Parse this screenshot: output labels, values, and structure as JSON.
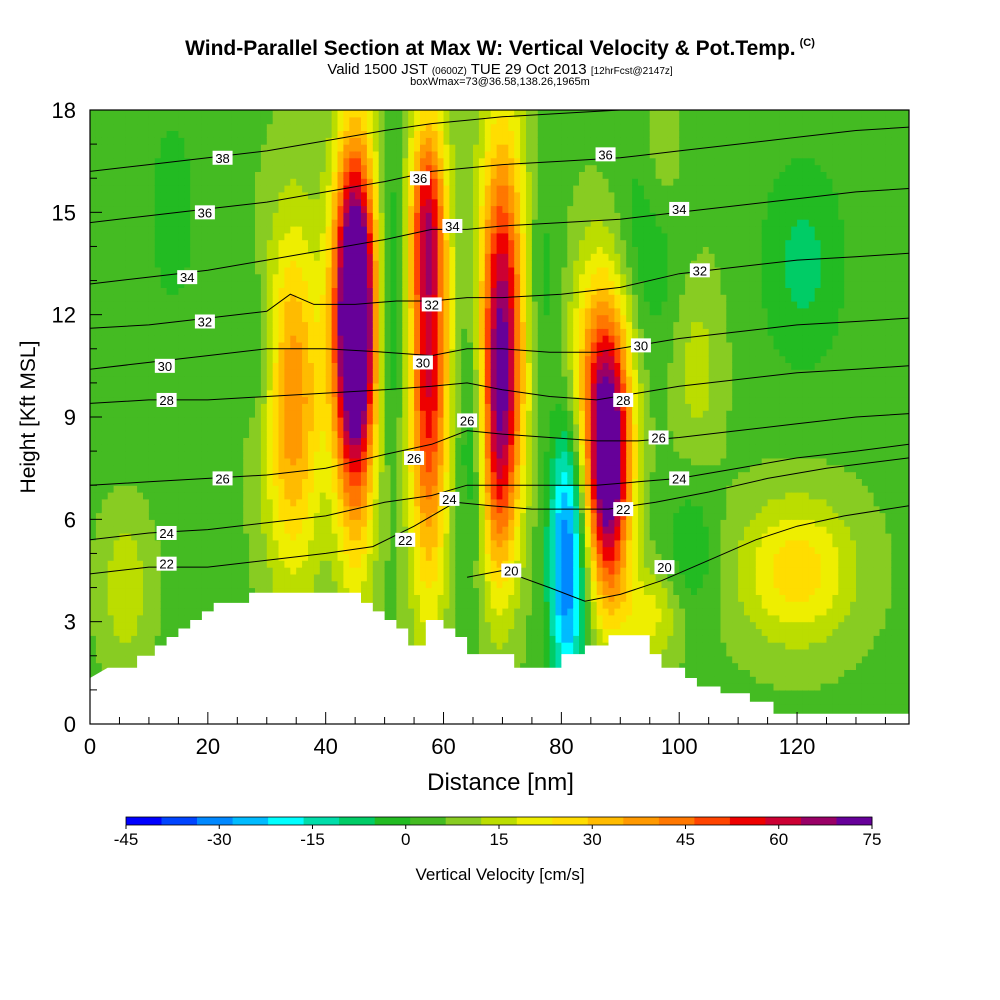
{
  "title": {
    "main": "Wind-Parallel Section at Max W: Vertical Velocity & Pot.Temp.",
    "copyright": "(C)",
    "valid_prefix": "Valid 1500 JST",
    "valid_utc": "(0600Z)",
    "valid_date": "TUE 29 Oct 2013",
    "forecast": "[12hrFcst@2147z]",
    "box_info": "boxWmax=73@36.58,138.26,1965m"
  },
  "chart_data": {
    "type": "heatmap",
    "xlabel": "Distance [nm]",
    "ylabel": "Height [Kft MSL]",
    "xlim": [
      0,
      139
    ],
    "ylim": [
      0,
      18
    ],
    "x_ticks": [
      0,
      20,
      40,
      60,
      80,
      100,
      120
    ],
    "y_ticks": [
      0,
      3,
      6,
      9,
      12,
      15,
      18
    ],
    "colorbar": {
      "label": "Vertical Velocity [cm/s]",
      "ticks": [
        -45,
        -30,
        -15,
        0,
        15,
        30,
        45,
        60,
        75
      ],
      "range": [
        -45,
        75
      ],
      "colors": [
        "#0000ff",
        "#0044ff",
        "#0088ff",
        "#00bbff",
        "#00ffff",
        "#00ddaa",
        "#00cc66",
        "#22bb22",
        "#44bb22",
        "#88cc22",
        "#bbdd00",
        "#eeee00",
        "#ffdd00",
        "#ffbb00",
        "#ff9900",
        "#ff7700",
        "#ff4400",
        "#ee0000",
        "#cc0033",
        "#990066",
        "#660099"
      ]
    },
    "terrain_kft": [
      [
        0,
        1.35
      ],
      [
        3,
        1.65
      ],
      [
        8,
        1.65
      ],
      [
        8,
        2.0
      ],
      [
        11,
        2.0
      ],
      [
        11,
        2.3
      ],
      [
        13,
        2.3
      ],
      [
        13,
        2.55
      ],
      [
        15,
        2.55
      ],
      [
        15,
        2.8
      ],
      [
        17,
        2.8
      ],
      [
        17,
        3.05
      ],
      [
        19,
        3.05
      ],
      [
        19,
        3.3
      ],
      [
        21,
        3.3
      ],
      [
        21,
        3.55
      ],
      [
        27,
        3.55
      ],
      [
        27,
        3.85
      ],
      [
        46,
        3.85
      ],
      [
        46,
        3.55
      ],
      [
        48,
        3.55
      ],
      [
        48,
        3.3
      ],
      [
        50,
        3.3
      ],
      [
        50,
        3.05
      ],
      [
        52,
        3.05
      ],
      [
        52,
        2.8
      ],
      [
        54,
        2.8
      ],
      [
        54,
        2.3
      ],
      [
        57,
        2.3
      ],
      [
        57,
        3.05
      ],
      [
        60,
        3.05
      ],
      [
        60,
        2.8
      ],
      [
        62,
        2.8
      ],
      [
        62,
        2.55
      ],
      [
        64,
        2.55
      ],
      [
        64,
        2.05
      ],
      [
        72,
        2.05
      ],
      [
        72,
        1.65
      ],
      [
        80,
        1.65
      ],
      [
        80,
        2.05
      ],
      [
        84,
        2.05
      ],
      [
        84,
        2.3
      ],
      [
        88,
        2.3
      ],
      [
        88,
        2.6
      ],
      [
        95,
        2.6
      ],
      [
        95,
        2.05
      ],
      [
        97,
        2.05
      ],
      [
        97,
        1.65
      ],
      [
        101,
        1.65
      ],
      [
        101,
        1.35
      ],
      [
        103,
        1.35
      ],
      [
        103,
        1.1
      ],
      [
        107,
        1.1
      ],
      [
        107,
        0.9
      ],
      [
        112,
        0.9
      ],
      [
        112,
        0.65
      ],
      [
        116,
        0.65
      ],
      [
        116,
        0.3
      ],
      [
        121,
        0.3
      ],
      [
        139,
        0.3
      ]
    ],
    "w_features": [
      {
        "x": 45.0,
        "y": 12.3,
        "sx": 2.6,
        "sy": 3.2,
        "w": 75
      },
      {
        "x": 45.0,
        "y": 10.0,
        "sx": 2.4,
        "sy": 4.5,
        "w": 30
      },
      {
        "x": 34.5,
        "y": 9.5,
        "sx": 3.5,
        "sy": 3.6,
        "w": 35
      },
      {
        "x": 57.5,
        "y": 11.0,
        "sx": 2.4,
        "sy": 4.8,
        "w": 55
      },
      {
        "x": 57.0,
        "y": 14.8,
        "sx": 2.0,
        "sy": 1.5,
        "w": 20
      },
      {
        "x": 70.0,
        "y": 12.0,
        "sx": 2.8,
        "sy": 4.0,
        "w": 55
      },
      {
        "x": 69.0,
        "y": 8.0,
        "sx": 2.4,
        "sy": 3.0,
        "w": 30
      },
      {
        "x": 88.0,
        "y": 7.3,
        "sx": 2.6,
        "sy": 2.6,
        "w": 70
      },
      {
        "x": 86.5,
        "y": 10.5,
        "sx": 3.6,
        "sy": 2.5,
        "w": 30
      },
      {
        "x": 120.0,
        "y": 4.5,
        "sx": 7.0,
        "sy": 1.5,
        "w": 22
      },
      {
        "x": 95.0,
        "y": 3.2,
        "sx": 4.0,
        "sy": 1.0,
        "w": 15
      },
      {
        "x": 6.0,
        "y": 4.0,
        "sx": 3.0,
        "sy": 1.5,
        "w": 12
      },
      {
        "x": 81.0,
        "y": 4.8,
        "sx": 2.2,
        "sy": 2.8,
        "w": -40
      },
      {
        "x": 65.5,
        "y": 8.5,
        "sx": 2.0,
        "sy": 2.8,
        "w": -18
      },
      {
        "x": 51.0,
        "y": 12.5,
        "sx": 1.8,
        "sy": 3.0,
        "w": -15
      },
      {
        "x": 29.0,
        "y": 11.0,
        "sx": 2.0,
        "sy": 1.5,
        "w": -10
      },
      {
        "x": 76.5,
        "y": 13.0,
        "sx": 2.5,
        "sy": 2.0,
        "w": -8
      },
      {
        "x": 121.0,
        "y": 13.5,
        "sx": 5.0,
        "sy": 2.2,
        "w": -12
      },
      {
        "x": 95.0,
        "y": 14.5,
        "sx": 4.0,
        "sy": 2.5,
        "w": -10
      },
      {
        "x": 102.0,
        "y": 5.0,
        "sx": 3.0,
        "sy": 1.5,
        "w": -10
      },
      {
        "x": 14.0,
        "y": 15.0,
        "sx": 4.0,
        "sy": 3.0,
        "w": -6
      },
      {
        "x": 103.0,
        "y": 10.5,
        "sx": 3.0,
        "sy": 2.0,
        "w": 10
      },
      {
        "x": 97.0,
        "y": 16.5,
        "sx": 2.5,
        "sy": 1.5,
        "w": 10
      }
    ],
    "isentropes": [
      {
        "label": "20",
        "pts": [
          [
            64,
            4.3
          ],
          [
            70,
            4.5
          ],
          [
            78,
            4.0
          ],
          [
            84,
            3.6
          ],
          [
            90,
            3.8
          ],
          [
            97,
            4.2
          ],
          [
            105,
            4.8
          ],
          [
            113,
            5.4
          ],
          [
            120,
            5.8
          ],
          [
            128,
            6.1
          ],
          [
            139,
            6.4
          ]
        ]
      },
      {
        "label": "22",
        "pts": [
          [
            0,
            4.4
          ],
          [
            10,
            4.6
          ],
          [
            20,
            4.6
          ],
          [
            30,
            4.8
          ],
          [
            40,
            5.0
          ],
          [
            48,
            5.2
          ],
          [
            55,
            5.8
          ],
          [
            62,
            6.5
          ],
          [
            68,
            6.4
          ],
          [
            75,
            6.3
          ],
          [
            82,
            6.3
          ],
          [
            88,
            6.3
          ],
          [
            96,
            6.5
          ],
          [
            105,
            6.8
          ],
          [
            115,
            7.2
          ],
          [
            125,
            7.5
          ],
          [
            139,
            7.8
          ]
        ]
      },
      {
        "label": "24",
        "pts": [
          [
            0,
            5.4
          ],
          [
            10,
            5.6
          ],
          [
            20,
            5.7
          ],
          [
            30,
            5.9
          ],
          [
            40,
            6.1
          ],
          [
            50,
            6.5
          ],
          [
            58,
            6.7
          ],
          [
            64,
            7.0
          ],
          [
            70,
            7.0
          ],
          [
            78,
            7.0
          ],
          [
            86,
            7.0
          ],
          [
            93,
            7.1
          ],
          [
            100,
            7.2
          ],
          [
            110,
            7.5
          ],
          [
            120,
            7.8
          ],
          [
            130,
            8.0
          ],
          [
            139,
            8.2
          ]
        ]
      },
      {
        "label": "26",
        "pts": [
          [
            0,
            7.0
          ],
          [
            10,
            7.1
          ],
          [
            20,
            7.2
          ],
          [
            30,
            7.3
          ],
          [
            40,
            7.5
          ],
          [
            50,
            7.9
          ],
          [
            58,
            8.2
          ],
          [
            64,
            8.6
          ],
          [
            70,
            8.5
          ],
          [
            78,
            8.4
          ],
          [
            86,
            8.3
          ],
          [
            93,
            8.3
          ],
          [
            100,
            8.4
          ],
          [
            110,
            8.6
          ],
          [
            120,
            8.8
          ],
          [
            130,
            9.0
          ],
          [
            139,
            9.1
          ]
        ]
      },
      {
        "label": "28",
        "pts": [
          [
            0,
            9.4
          ],
          [
            10,
            9.5
          ],
          [
            20,
            9.5
          ],
          [
            30,
            9.6
          ],
          [
            40,
            9.7
          ],
          [
            50,
            9.8
          ],
          [
            58,
            9.9
          ],
          [
            64,
            10.0
          ],
          [
            70,
            9.8
          ],
          [
            78,
            9.6
          ],
          [
            86,
            9.5
          ],
          [
            93,
            9.7
          ],
          [
            100,
            9.9
          ],
          [
            110,
            10.1
          ],
          [
            120,
            10.3
          ],
          [
            130,
            10.4
          ],
          [
            139,
            10.5
          ]
        ]
      },
      {
        "label": "30",
        "pts": [
          [
            0,
            10.4
          ],
          [
            10,
            10.6
          ],
          [
            20,
            10.8
          ],
          [
            30,
            11.0
          ],
          [
            40,
            11.0
          ],
          [
            50,
            10.9
          ],
          [
            58,
            10.8
          ],
          [
            64,
            11.0
          ],
          [
            70,
            11.0
          ],
          [
            78,
            10.9
          ],
          [
            86,
            10.9
          ],
          [
            93,
            11.1
          ],
          [
            100,
            11.3
          ],
          [
            110,
            11.5
          ],
          [
            120,
            11.7
          ],
          [
            130,
            11.8
          ],
          [
            139,
            11.9
          ]
        ]
      },
      {
        "label": "32",
        "pts": [
          [
            0,
            11.6
          ],
          [
            10,
            11.7
          ],
          [
            20,
            11.9
          ],
          [
            30,
            12.1
          ],
          [
            34,
            12.6
          ],
          [
            38,
            12.3
          ],
          [
            45,
            12.3
          ],
          [
            52,
            12.4
          ],
          [
            58,
            12.4
          ],
          [
            64,
            12.5
          ],
          [
            70,
            12.5
          ],
          [
            80,
            12.6
          ],
          [
            90,
            12.8
          ],
          [
            100,
            13.2
          ],
          [
            110,
            13.4
          ],
          [
            120,
            13.6
          ],
          [
            130,
            13.7
          ],
          [
            139,
            13.8
          ]
        ]
      },
      {
        "label": "34",
        "pts": [
          [
            0,
            12.9
          ],
          [
            10,
            13.1
          ],
          [
            20,
            13.3
          ],
          [
            30,
            13.6
          ],
          [
            40,
            13.9
          ],
          [
            50,
            14.2
          ],
          [
            58,
            14.5
          ],
          [
            64,
            14.5
          ],
          [
            70,
            14.6
          ],
          [
            80,
            14.7
          ],
          [
            90,
            14.8
          ],
          [
            100,
            15.0
          ],
          [
            110,
            15.2
          ],
          [
            120,
            15.4
          ],
          [
            130,
            15.6
          ],
          [
            139,
            15.7
          ]
        ]
      },
      {
        "label": "36",
        "pts": [
          [
            0,
            14.7
          ],
          [
            10,
            14.9
          ],
          [
            20,
            15.1
          ],
          [
            30,
            15.3
          ],
          [
            40,
            15.6
          ],
          [
            50,
            15.9
          ],
          [
            58,
            16.2
          ],
          [
            64,
            16.3
          ],
          [
            70,
            16.4
          ],
          [
            80,
            16.5
          ],
          [
            90,
            16.6
          ],
          [
            100,
            16.8
          ],
          [
            110,
            17.0
          ],
          [
            120,
            17.2
          ],
          [
            130,
            17.4
          ],
          [
            139,
            17.5
          ]
        ]
      },
      {
        "label": "38",
        "pts": [
          [
            0,
            16.2
          ],
          [
            10,
            16.4
          ],
          [
            20,
            16.6
          ],
          [
            30,
            16.8
          ],
          [
            40,
            17.1
          ],
          [
            50,
            17.4
          ],
          [
            58,
            17.6
          ],
          [
            64,
            17.7
          ],
          [
            70,
            17.8
          ],
          [
            80,
            17.9
          ],
          [
            90,
            18.0
          ]
        ]
      }
    ],
    "contour_labels": [
      {
        "text": "38",
        "x": 22.5,
        "y": 16.6
      },
      {
        "text": "36",
        "x": 19.5,
        "y": 15.0
      },
      {
        "text": "34",
        "x": 16.5,
        "y": 13.1
      },
      {
        "text": "32",
        "x": 19.5,
        "y": 11.8
      },
      {
        "text": "30",
        "x": 12.7,
        "y": 10.5
      },
      {
        "text": "28",
        "x": 13.0,
        "y": 9.5
      },
      {
        "text": "26",
        "x": 22.5,
        "y": 7.2
      },
      {
        "text": "24",
        "x": 13.0,
        "y": 5.6
      },
      {
        "text": "22",
        "x": 13.0,
        "y": 4.7
      },
      {
        "text": "36",
        "x": 56.0,
        "y": 16.0
      },
      {
        "text": "34",
        "x": 61.5,
        "y": 14.6
      },
      {
        "text": "32",
        "x": 58.0,
        "y": 12.3
      },
      {
        "text": "30",
        "x": 56.5,
        "y": 10.6
      },
      {
        "text": "26",
        "x": 64.0,
        "y": 8.9
      },
      {
        "text": "26",
        "x": 55.0,
        "y": 7.8
      },
      {
        "text": "24",
        "x": 61.0,
        "y": 6.6
      },
      {
        "text": "22",
        "x": 53.5,
        "y": 5.4
      },
      {
        "text": "20",
        "x": 71.5,
        "y": 4.5
      },
      {
        "text": "36",
        "x": 87.5,
        "y": 16.7
      },
      {
        "text": "34",
        "x": 100.0,
        "y": 15.1
      },
      {
        "text": "32",
        "x": 103.5,
        "y": 13.3
      },
      {
        "text": "30",
        "x": 93.5,
        "y": 11.1
      },
      {
        "text": "28",
        "x": 90.5,
        "y": 9.5
      },
      {
        "text": "26",
        "x": 96.5,
        "y": 8.4
      },
      {
        "text": "24",
        "x": 100.0,
        "y": 7.2
      },
      {
        "text": "22",
        "x": 90.5,
        "y": 6.3
      },
      {
        "text": "20",
        "x": 97.5,
        "y": 4.6
      }
    ]
  }
}
